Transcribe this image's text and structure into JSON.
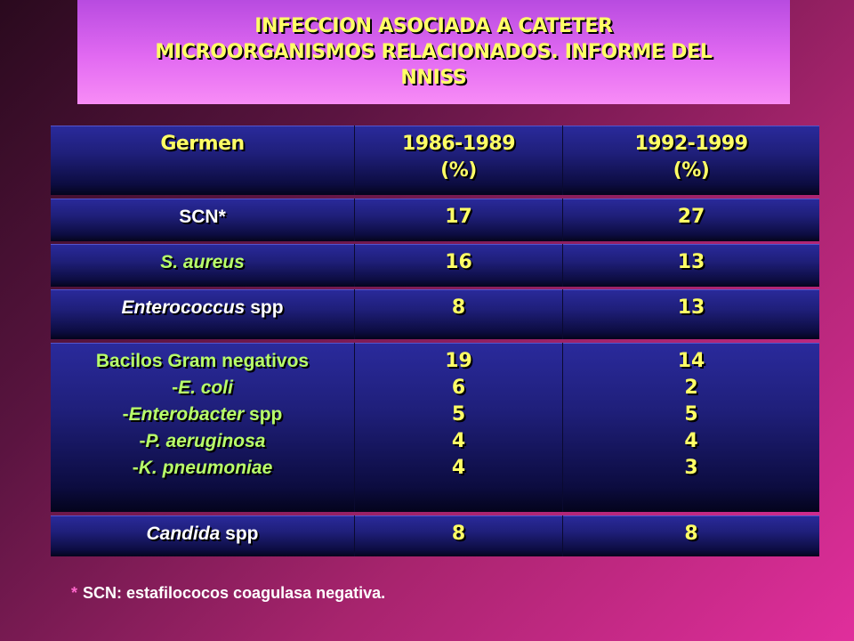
{
  "title": {
    "line1": "INFECCION ASOCIADA A CATETER",
    "line2": "MICROORGANISMOS RELACIONADOS. INFORME DEL",
    "line3": "NNISS"
  },
  "table": {
    "headers": {
      "germen": "Germen",
      "period1_years": "1986-1989",
      "period1_unit": "(%)",
      "period2_years": "1992-1999",
      "period2_unit": "(%)"
    },
    "rows": {
      "scn": {
        "label": "SCN*",
        "p1": "17",
        "p2": "27"
      },
      "saureus": {
        "label": "S. aureus",
        "p1": "16",
        "p2": "13"
      },
      "enterococcus": {
        "label_italic": "Enterococcus",
        "label_rest": " spp",
        "p1": "8",
        "p2": "13"
      },
      "bacilos": {
        "label": "Bacilos Gram negativos",
        "p1": "19",
        "p2": "14",
        "sub": [
          {
            "prefix": "-",
            "italic": "E. coli",
            "rest": "",
            "p1": "6",
            "p2": "2"
          },
          {
            "prefix": "-",
            "italic": "Enterobacter",
            "rest": " spp",
            "p1": "5",
            "p2": "5"
          },
          {
            "prefix": "-",
            "italic": "P. aeruginosa",
            "rest": "",
            "p1": "4",
            "p2": "4"
          },
          {
            "prefix": "-",
            "italic": "K. pneumoniae",
            "rest": "",
            "p1": "4",
            "p2": "3"
          }
        ]
      },
      "candida": {
        "label_italic": "Candida",
        "label_rest": " spp",
        "p1": "8",
        "p2": "8"
      }
    }
  },
  "footnote": {
    "asterisk": "*",
    "text": "SCN: estafilococos coagulasa negativa."
  }
}
